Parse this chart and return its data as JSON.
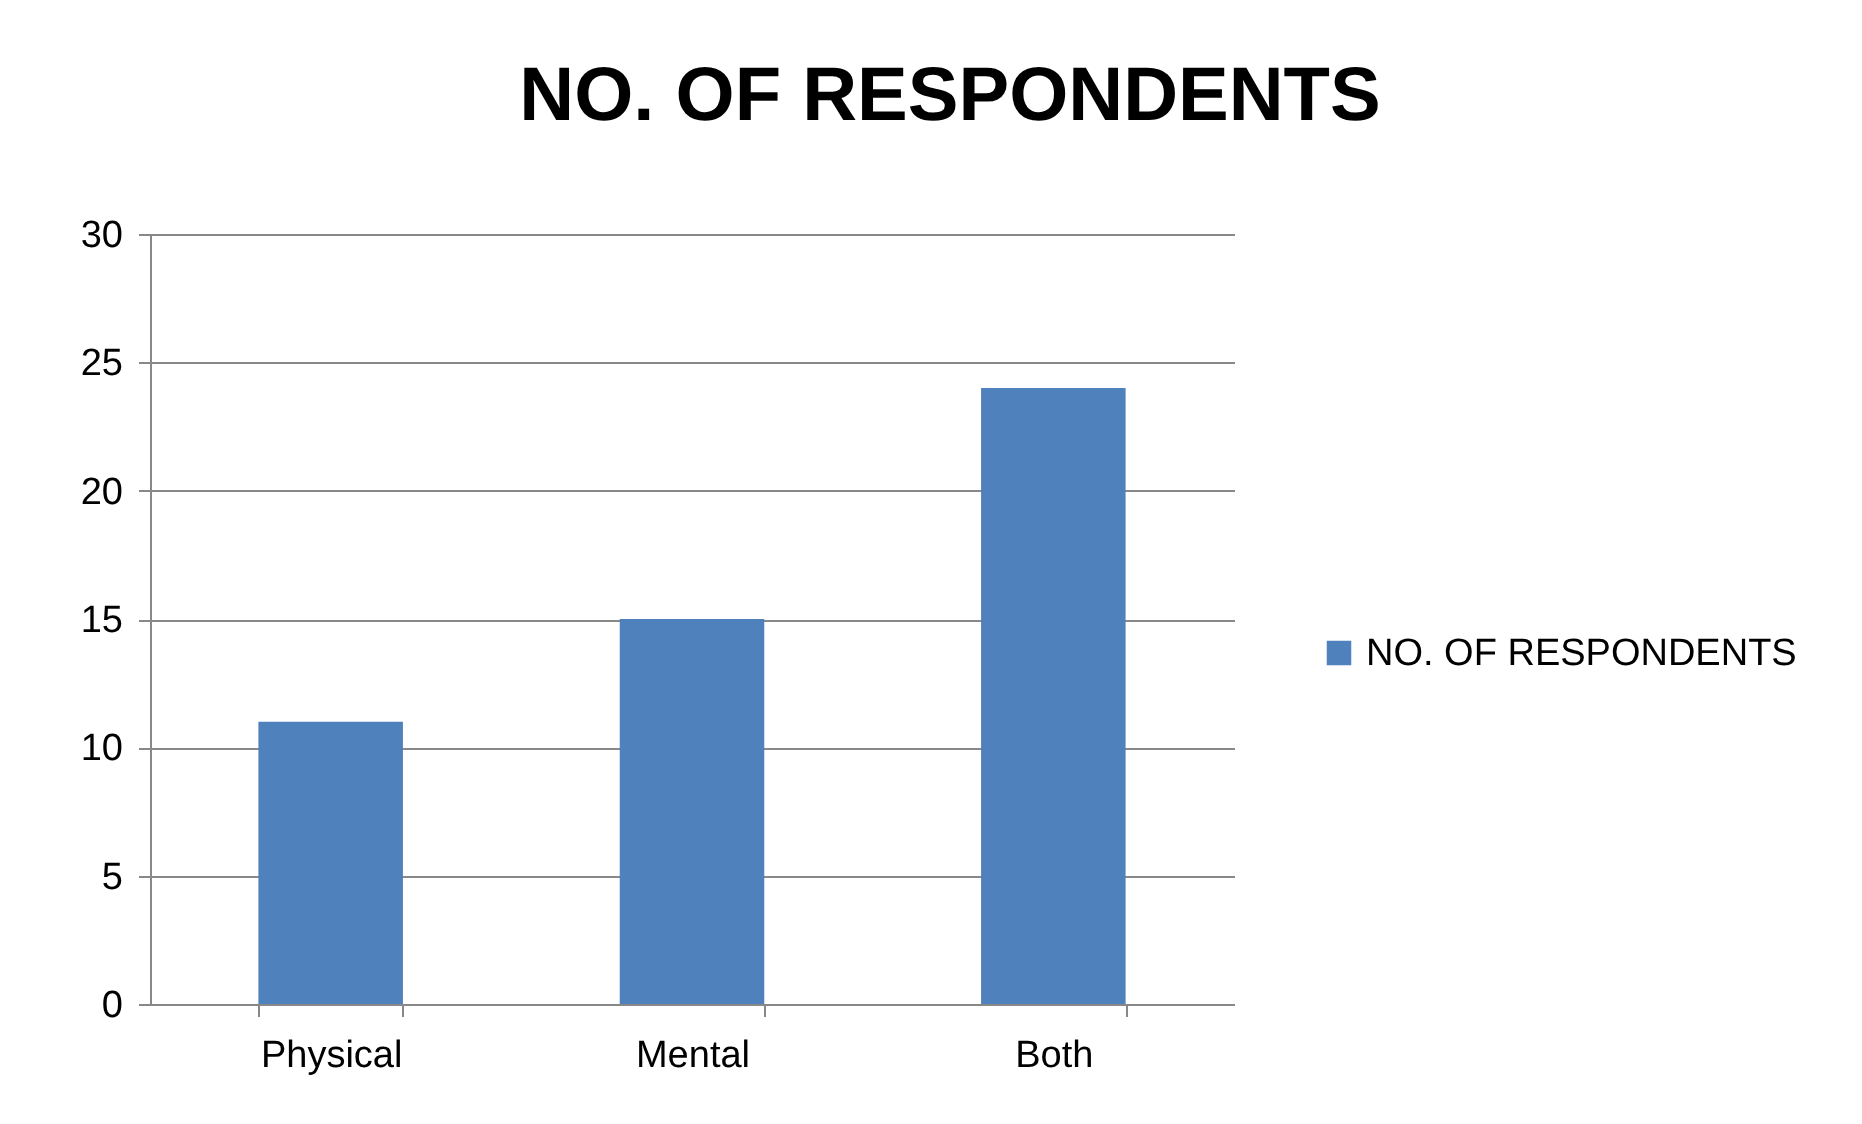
{
  "chart_data": {
    "type": "bar",
    "title": "NO. OF RESPONDENTS",
    "categories": [
      "Physical",
      "Mental",
      "Both"
    ],
    "series": [
      {
        "name": "NO. OF RESPONDENTS",
        "color": "#4f81bd",
        "values": [
          11,
          15,
          24
        ]
      }
    ],
    "ylim": [
      0,
      30
    ],
    "yticks": [
      0,
      5,
      10,
      15,
      20,
      25,
      30
    ],
    "grid": "y",
    "legend": "right"
  }
}
